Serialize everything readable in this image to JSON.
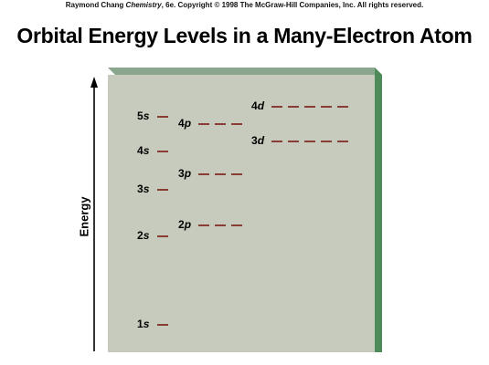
{
  "header": {
    "copyright_author": "Raymond Chang",
    "copyright_book": "Chemistry",
    "copyright_rest": ", 6e.  Copyright © 1998 The McGraw-Hill Companies, Inc. All rights reserved."
  },
  "title": "Orbital Energy Levels in a Many-Electron Atom",
  "axis_label": "Energy",
  "colors": {
    "panel_face": "#c7cbbd",
    "panel_top": "#8aa68c",
    "panel_side": "#4f8a5a",
    "level_line": "#7a1a12"
  },
  "levels": [
    {
      "id": "1s",
      "n": "1",
      "l": "s",
      "orbitals": 1
    },
    {
      "id": "2s",
      "n": "2",
      "l": "s",
      "orbitals": 1
    },
    {
      "id": "2p",
      "n": "2",
      "l": "p",
      "orbitals": 3
    },
    {
      "id": "3s",
      "n": "3",
      "l": "s",
      "orbitals": 1
    },
    {
      "id": "3p",
      "n": "3",
      "l": "p",
      "orbitals": 3
    },
    {
      "id": "4s",
      "n": "4",
      "l": "s",
      "orbitals": 1
    },
    {
      "id": "3d",
      "n": "3",
      "l": "d",
      "orbitals": 5
    },
    {
      "id": "4p",
      "n": "4",
      "l": "p",
      "orbitals": 3
    },
    {
      "id": "5s",
      "n": "5",
      "l": "s",
      "orbitals": 1
    },
    {
      "id": "4d",
      "n": "4",
      "l": "d",
      "orbitals": 5
    }
  ]
}
